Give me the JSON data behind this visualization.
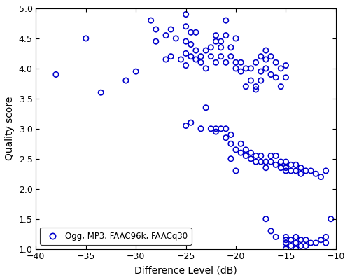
{
  "title": "",
  "xlabel": "Difference Level (dB)",
  "ylabel": "Quality score",
  "xlim": [
    -40,
    -10
  ],
  "ylim": [
    1,
    5
  ],
  "xticks": [
    -40,
    -35,
    -30,
    -25,
    -20,
    -15,
    -10
  ],
  "yticks": [
    1.0,
    1.5,
    2.0,
    2.5,
    3.0,
    3.5,
    4.0,
    4.5,
    5.0
  ],
  "legend_label": "Ogg, MP3, FAAC96k, FAACq30",
  "marker_color": "#0000CC",
  "marker_size": 28,
  "x": [
    -38.0,
    -35.0,
    -33.5,
    -31.0,
    -30.0,
    -28.0,
    -28.0,
    -28.5,
    -27.0,
    -27.0,
    -26.5,
    -26.0,
    -26.5,
    -25.5,
    -25.0,
    -25.0,
    -25.0,
    -24.5,
    -24.5,
    -25.0,
    -25.0,
    -24.5,
    -24.0,
    -24.0,
    -24.0,
    -23.5,
    -23.5,
    -23.0,
    -23.0,
    -22.5,
    -22.5,
    -22.0,
    -22.0,
    -22.0,
    -21.5,
    -21.5,
    -21.5,
    -21.0,
    -21.0,
    -21.0,
    -20.5,
    -20.5,
    -20.0,
    -20.0,
    -20.0,
    -19.5,
    -19.5,
    -19.0,
    -19.0,
    -18.5,
    -18.5,
    -18.0,
    -18.0,
    -17.5,
    -17.5,
    -17.0,
    -17.0,
    -16.5,
    -16.5,
    -16.0,
    -16.0,
    -15.5,
    -15.5,
    -15.0,
    -15.0,
    -18.0,
    -17.5,
    -17.0,
    -25.0,
    -24.5,
    -23.5,
    -23.0,
    -22.5,
    -22.0,
    -22.0,
    -21.5,
    -21.0,
    -21.0,
    -20.5,
    -20.5,
    -20.0,
    -19.5,
    -19.5,
    -19.0,
    -19.0,
    -18.5,
    -18.5,
    -18.0,
    -18.0,
    -17.5,
    -17.5,
    -17.0,
    -17.0,
    -16.5,
    -16.5,
    -16.0,
    -16.0,
    -15.5,
    -15.5,
    -15.0,
    -15.0,
    -15.0,
    -14.5,
    -14.5,
    -14.0,
    -14.0,
    -13.5,
    -13.5,
    -13.0,
    -12.5,
    -12.0,
    -11.5,
    -11.0,
    -20.5,
    -20.0,
    -15.0,
    -15.0,
    -15.0,
    -15.0,
    -14.5,
    -14.5,
    -14.0,
    -14.0,
    -14.0,
    -13.5,
    -13.5,
    -13.0,
    -13.0,
    -12.5,
    -12.0,
    -11.5,
    -11.0,
    -11.0,
    -10.5,
    -16.0,
    -16.5,
    -17.0
  ],
  "y": [
    3.9,
    4.5,
    3.6,
    3.8,
    3.95,
    4.45,
    4.65,
    4.8,
    4.15,
    4.55,
    4.2,
    4.5,
    4.65,
    4.15,
    4.45,
    4.9,
    4.7,
    4.2,
    4.6,
    4.25,
    4.05,
    4.4,
    4.3,
    4.15,
    4.6,
    4.2,
    4.1,
    4.3,
    4.0,
    4.35,
    4.2,
    4.45,
    4.1,
    4.55,
    4.35,
    4.2,
    4.45,
    4.1,
    4.55,
    4.8,
    4.2,
    4.35,
    4.0,
    4.5,
    4.1,
    3.95,
    4.1,
    3.7,
    4.0,
    3.8,
    4.0,
    3.7,
    4.1,
    3.8,
    4.2,
    4.0,
    4.3,
    3.9,
    4.2,
    3.85,
    4.1,
    3.7,
    4.0,
    3.85,
    4.05,
    3.65,
    3.95,
    4.15,
    3.05,
    3.1,
    3.0,
    3.35,
    3.0,
    3.0,
    2.95,
    3.0,
    2.85,
    3.0,
    2.75,
    2.9,
    2.65,
    2.6,
    2.75,
    2.55,
    2.65,
    2.5,
    2.6,
    2.55,
    2.45,
    2.55,
    2.45,
    2.45,
    2.35,
    2.55,
    2.45,
    2.4,
    2.55,
    2.35,
    2.45,
    2.35,
    2.45,
    2.3,
    2.3,
    2.4,
    2.3,
    2.4,
    2.25,
    2.35,
    2.3,
    2.3,
    2.25,
    2.2,
    2.3,
    2.5,
    2.3,
    1.0,
    1.15,
    1.1,
    1.2,
    1.05,
    1.15,
    1.0,
    1.1,
    1.2,
    1.05,
    1.15,
    1.05,
    1.15,
    1.1,
    1.1,
    1.15,
    1.1,
    1.2,
    1.5,
    1.2,
    1.3,
    1.5
  ]
}
